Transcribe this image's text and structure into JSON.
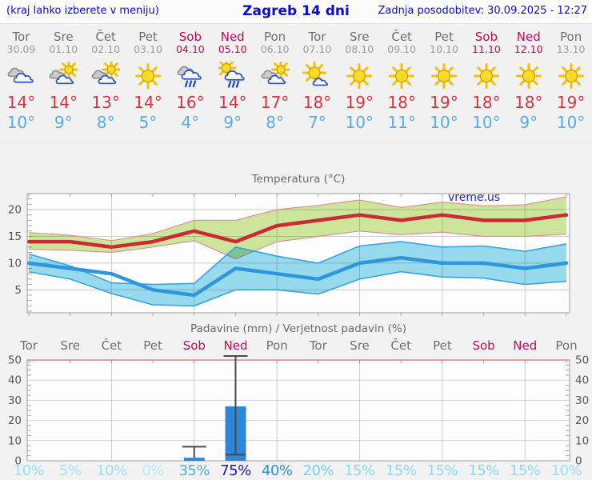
{
  "header": {
    "hint": "(kraj lahko izberete v meniju)",
    "title": "Zagreb 14 dni",
    "updated": "Zadnja posodobitev: 30.09.2025 - 12:27"
  },
  "colors": {
    "header_text": "#0a0ad2",
    "day": "#6f6f6f",
    "date": "#9b9b9b",
    "weekend": "#c40a5a",
    "tmax": "#d63540",
    "tmin": "#58ace9",
    "chart_title": "#6a6a6a",
    "axis_label": "#555555",
    "grid": "#cccccc",
    "border": "#9e9e9e",
    "precip_top_line": "#e87f7f",
    "whisker": "#4a4a4a",
    "watermark": "#2222dd",
    "bar": "#2e86d8"
  },
  "forecast": {
    "days": [
      {
        "name": "Tor",
        "date": "30.09",
        "weekend": false,
        "icon": "cloudy",
        "tmax": "14°",
        "tmin": "10°"
      },
      {
        "name": "Sre",
        "date": "01.10",
        "weekend": false,
        "icon": "partly-cloudy",
        "tmax": "14°",
        "tmin": "9°"
      },
      {
        "name": "Čet",
        "date": "02.10",
        "weekend": false,
        "icon": "partly-cloudy",
        "tmax": "13°",
        "tmin": "8°"
      },
      {
        "name": "Pet",
        "date": "03.10",
        "weekend": false,
        "icon": "sunny",
        "tmax": "14°",
        "tmin": "5°"
      },
      {
        "name": "Sob",
        "date": "04.10",
        "weekend": true,
        "icon": "rain",
        "tmax": "16°",
        "tmin": "4°"
      },
      {
        "name": "Ned",
        "date": "05.10",
        "weekend": true,
        "icon": "sun-rain",
        "tmax": "14°",
        "tmin": "9°"
      },
      {
        "name": "Pon",
        "date": "06.10",
        "weekend": false,
        "icon": "partly-cloudy",
        "tmax": "17°",
        "tmin": "8°"
      },
      {
        "name": "Tor",
        "date": "07.10",
        "weekend": false,
        "icon": "mostly-sunny",
        "tmax": "18°",
        "tmin": "7°"
      },
      {
        "name": "Sre",
        "date": "08.10",
        "weekend": false,
        "icon": "sunny",
        "tmax": "19°",
        "tmin": "10°"
      },
      {
        "name": "Čet",
        "date": "09.10",
        "weekend": false,
        "icon": "sunny",
        "tmax": "18°",
        "tmin": "11°"
      },
      {
        "name": "Pet",
        "date": "10.10",
        "weekend": false,
        "icon": "sunny",
        "tmax": "19°",
        "tmin": "10°"
      },
      {
        "name": "Sob",
        "date": "11.10",
        "weekend": true,
        "icon": "sunny",
        "tmax": "18°",
        "tmin": "10°"
      },
      {
        "name": "Ned",
        "date": "12.10",
        "weekend": true,
        "icon": "sunny",
        "tmax": "18°",
        "tmin": "9°"
      },
      {
        "name": "Pon",
        "date": "13.10",
        "weekend": false,
        "icon": "sunny",
        "tmax": "19°",
        "tmin": "10°"
      }
    ]
  },
  "chart_data": [
    {
      "type": "line",
      "title": "Temperatura (°C)",
      "watermark": "vreme.us",
      "x_labels": [
        "Tor",
        "Sre",
        "Čet",
        "Pet",
        "Sob",
        "Ned",
        "Pon",
        "Tor",
        "Sre",
        "Čet",
        "Pet",
        "Sob",
        "Ned",
        "Pon"
      ],
      "ylim": [
        0.7,
        23
      ],
      "yticks": [
        5,
        10,
        15,
        20
      ],
      "grid_day_indices": [
        2,
        4,
        6,
        8,
        10,
        12
      ],
      "series": [
        {
          "name": "max temperature",
          "color": "#cb2936",
          "values": [
            14,
            14,
            13,
            14,
            16,
            14,
            17,
            18,
            19,
            18,
            19,
            18,
            18,
            19
          ]
        },
        {
          "name": "min temperature",
          "color": "#2e96de",
          "values": [
            10,
            9,
            8,
            5,
            4,
            9,
            8,
            7,
            10,
            11,
            10,
            10,
            9,
            10
          ]
        }
      ],
      "bands": [
        {
          "name": "max temperature range",
          "fill": "#cfe79c",
          "stroke": "#e09090",
          "upper": [
            15.7,
            15.2,
            14.2,
            15.5,
            18.0,
            18.0,
            20.0,
            20.8,
            21.8,
            20.4,
            21.4,
            20.7,
            20.9,
            22.4
          ],
          "lower": [
            12.6,
            12.4,
            12.0,
            13.0,
            14.2,
            10.8,
            14.0,
            15.0,
            16.0,
            15.3,
            15.8,
            15.0,
            15.0,
            15.4
          ]
        },
        {
          "name": "min temperature range",
          "fill": "#98dcf0",
          "stroke": "#39a3e0",
          "upper": [
            11.7,
            9.5,
            6.3,
            6.0,
            6.2,
            13.0,
            11.3,
            10.0,
            13.2,
            14.0,
            13.0,
            13.2,
            12.2,
            13.6
          ],
          "lower": [
            8.4,
            7.0,
            4.3,
            2.2,
            2.0,
            5.0,
            5.0,
            4.2,
            7.0,
            8.4,
            7.4,
            7.2,
            6.0,
            6.6
          ]
        }
      ]
    },
    {
      "type": "bar",
      "title": "Padavine (mm) / Verjetnost padavin (%)",
      "categories": [
        "Tor",
        "Sre",
        "Čet",
        "Pet",
        "Sob",
        "Ned",
        "Pon",
        "Tor",
        "Sre",
        "Čet",
        "Pet",
        "Sob",
        "Ned",
        "Pon"
      ],
      "weekend_indices": [
        4,
        5,
        11,
        12
      ],
      "ylim": [
        0,
        50
      ],
      "yticks": [
        0,
        10,
        20,
        30,
        40,
        50
      ],
      "grid_day_indices": [
        2,
        4,
        6,
        8,
        10,
        12
      ],
      "values_mm": [
        0,
        0,
        0,
        0,
        1.5,
        27,
        0,
        0,
        0,
        0,
        0,
        0,
        0,
        0
      ],
      "whiskers": [
        {
          "index": 4,
          "from": 1.5,
          "to": 7,
          "cap_from": false
        },
        {
          "index": 5,
          "from": 3,
          "to": 52,
          "cap_from": true
        }
      ],
      "probabilities": [
        {
          "label": "10%",
          "color": "#99e0f4"
        },
        {
          "label": "5%",
          "color": "#a4e5f5"
        },
        {
          "label": "10%",
          "color": "#99e0f4"
        },
        {
          "label": "0%",
          "color": "#b3ebf8"
        },
        {
          "label": "35%",
          "color": "#49b1e9"
        },
        {
          "label": "75%",
          "color": "#1b1bb0"
        },
        {
          "label": "40%",
          "color": "#2f8ee1"
        },
        {
          "label": "20%",
          "color": "#76d2ef"
        },
        {
          "label": "15%",
          "color": "#8adaf2"
        },
        {
          "label": "15%",
          "color": "#8adaf2"
        },
        {
          "label": "15%",
          "color": "#8adaf2"
        },
        {
          "label": "15%",
          "color": "#8adaf2"
        },
        {
          "label": "15%",
          "color": "#8adaf2"
        },
        {
          "label": "10%",
          "color": "#99e0f4"
        }
      ]
    }
  ]
}
